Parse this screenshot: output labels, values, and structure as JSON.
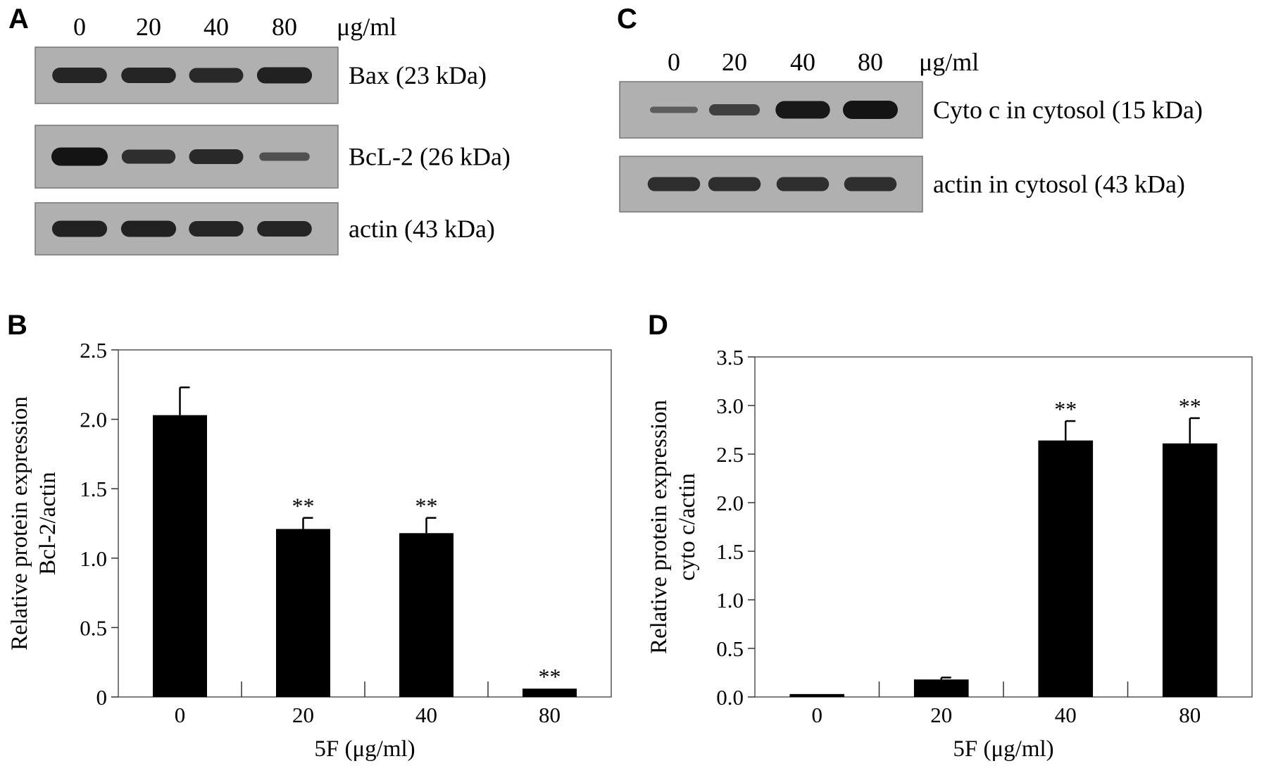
{
  "panels": {
    "A": {
      "letter": "A",
      "lanes": [
        "0",
        "20",
        "40",
        "80"
      ],
      "unit": "μg/ml",
      "blots": [
        {
          "label": "Bax (23 kDa)",
          "intensity": [
            0.8,
            0.8,
            0.75,
            0.85
          ]
        },
        {
          "label": "BcL-2 (26 kDa)",
          "intensity": [
            1.0,
            0.7,
            0.75,
            0.3
          ]
        },
        {
          "label": "actin (43 kDa)",
          "intensity": [
            0.85,
            0.85,
            0.8,
            0.8
          ]
        }
      ]
    },
    "C": {
      "letter": "C",
      "lanes": [
        "0",
        "20",
        "40",
        "80"
      ],
      "unit": "μg/ml",
      "blots": [
        {
          "label": "Cyto c in cytosol (15 kDa)",
          "intensity": [
            0.15,
            0.5,
            0.95,
            1.0
          ]
        },
        {
          "label": "actin in cytosol (43 kDa)",
          "intensity": [
            0.7,
            0.7,
            0.7,
            0.7
          ]
        }
      ]
    }
  },
  "chart_data": [
    {
      "panel": "B",
      "type": "bar",
      "categories": [
        "0",
        "20",
        "40",
        "80"
      ],
      "values": [
        2.03,
        1.21,
        1.18,
        0.06
      ],
      "errors": [
        0.2,
        0.08,
        0.11,
        0.0
      ],
      "annotations": [
        "",
        "**",
        "**",
        "**"
      ],
      "xlabel": "5F (μg/ml)",
      "ylabel": [
        "Relative protein expression",
        "Bcl-2/actin"
      ],
      "ylim": [
        0,
        2.5
      ],
      "yticks": [
        "0",
        "0.5",
        "1.0",
        "1.5",
        "2.0",
        "2.5"
      ],
      "ytick_values": [
        0,
        0.5,
        1.0,
        1.5,
        2.0,
        2.5
      ]
    },
    {
      "panel": "D",
      "type": "bar",
      "categories": [
        "0",
        "20",
        "40",
        "80"
      ],
      "values": [
        0.03,
        0.18,
        2.64,
        2.61
      ],
      "errors": [
        0.0,
        0.02,
        0.2,
        0.26
      ],
      "annotations": [
        "",
        "",
        "**",
        "**"
      ],
      "xlabel": "5F (μg/ml)",
      "ylabel": [
        "Relative protein expression",
        "cyto c/actin"
      ],
      "ylim": [
        0,
        3.5
      ],
      "yticks": [
        "0.0",
        "0.5",
        "1.0",
        "1.5",
        "2.0",
        "2.5",
        "3.0",
        "3.5"
      ],
      "ytick_values": [
        0,
        0.5,
        1.0,
        1.5,
        2.0,
        2.5,
        3.0,
        3.5
      ]
    }
  ],
  "colors": {
    "bar": "#000000",
    "axis": "#555555",
    "blot_bg": "#b0b0b0",
    "band": "#141414"
  }
}
